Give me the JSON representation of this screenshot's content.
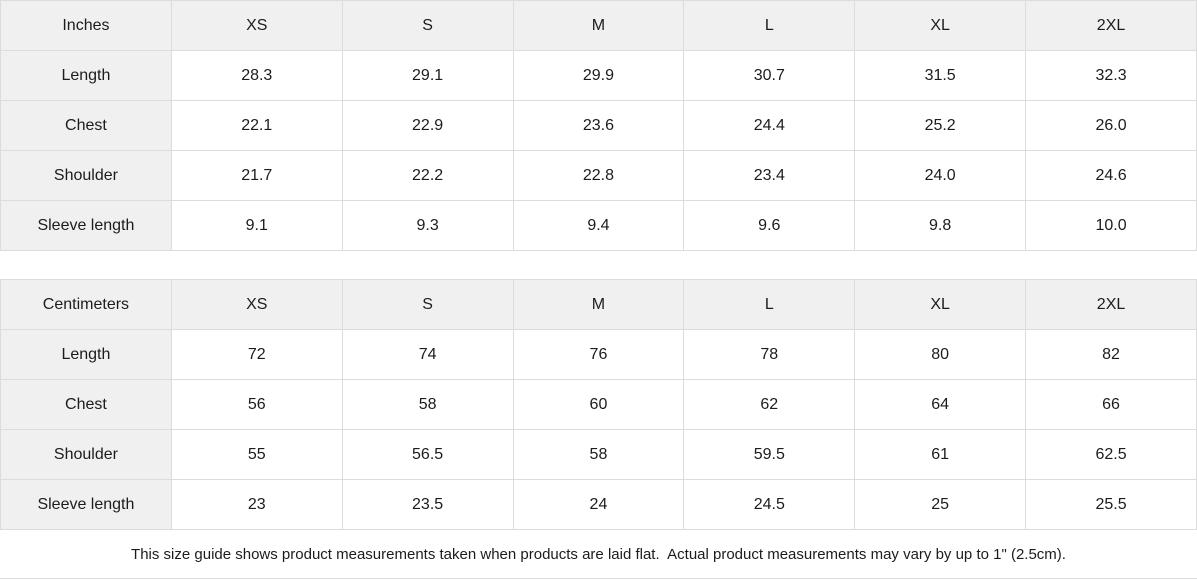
{
  "colors": {
    "header_background": "#f0f0f0",
    "row_label_background": "#f0f0f0",
    "grid_border": "#dcdcdc",
    "text": "#1c1c1e",
    "background": "#ffffff"
  },
  "chart_data": [
    {
      "type": "table",
      "unit_label": "Inches",
      "size_headers": [
        "XS",
        "S",
        "M",
        "L",
        "XL",
        "2XL"
      ],
      "rows": [
        {
          "label": "Length",
          "values": [
            "28.3",
            "29.1",
            "29.9",
            "30.7",
            "31.5",
            "32.3"
          ]
        },
        {
          "label": "Chest",
          "values": [
            "22.1",
            "22.9",
            "23.6",
            "24.4",
            "25.2",
            "26.0"
          ]
        },
        {
          "label": "Shoulder",
          "values": [
            "21.7",
            "22.2",
            "22.8",
            "23.4",
            "24.0",
            "24.6"
          ]
        },
        {
          "label": "Sleeve length",
          "values": [
            "9.1",
            "9.3",
            "9.4",
            "9.6",
            "9.8",
            "10.0"
          ]
        }
      ]
    },
    {
      "type": "table",
      "unit_label": "Centimeters",
      "size_headers": [
        "XS",
        "S",
        "M",
        "L",
        "XL",
        "2XL"
      ],
      "rows": [
        {
          "label": "Length",
          "values": [
            "72",
            "74",
            "76",
            "78",
            "80",
            "82"
          ]
        },
        {
          "label": "Chest",
          "values": [
            "56",
            "58",
            "60",
            "62",
            "64",
            "66"
          ]
        },
        {
          "label": "Shoulder",
          "values": [
            "55",
            "56.5",
            "58",
            "59.5",
            "61",
            "62.5"
          ]
        },
        {
          "label": "Sleeve length",
          "values": [
            "23",
            "23.5",
            "24",
            "24.5",
            "25",
            "25.5"
          ]
        }
      ]
    }
  ],
  "footer": {
    "note": "This size guide shows product measurements taken when products are laid flat.  Actual product measurements may vary by up to 1\" (2.5cm)."
  }
}
